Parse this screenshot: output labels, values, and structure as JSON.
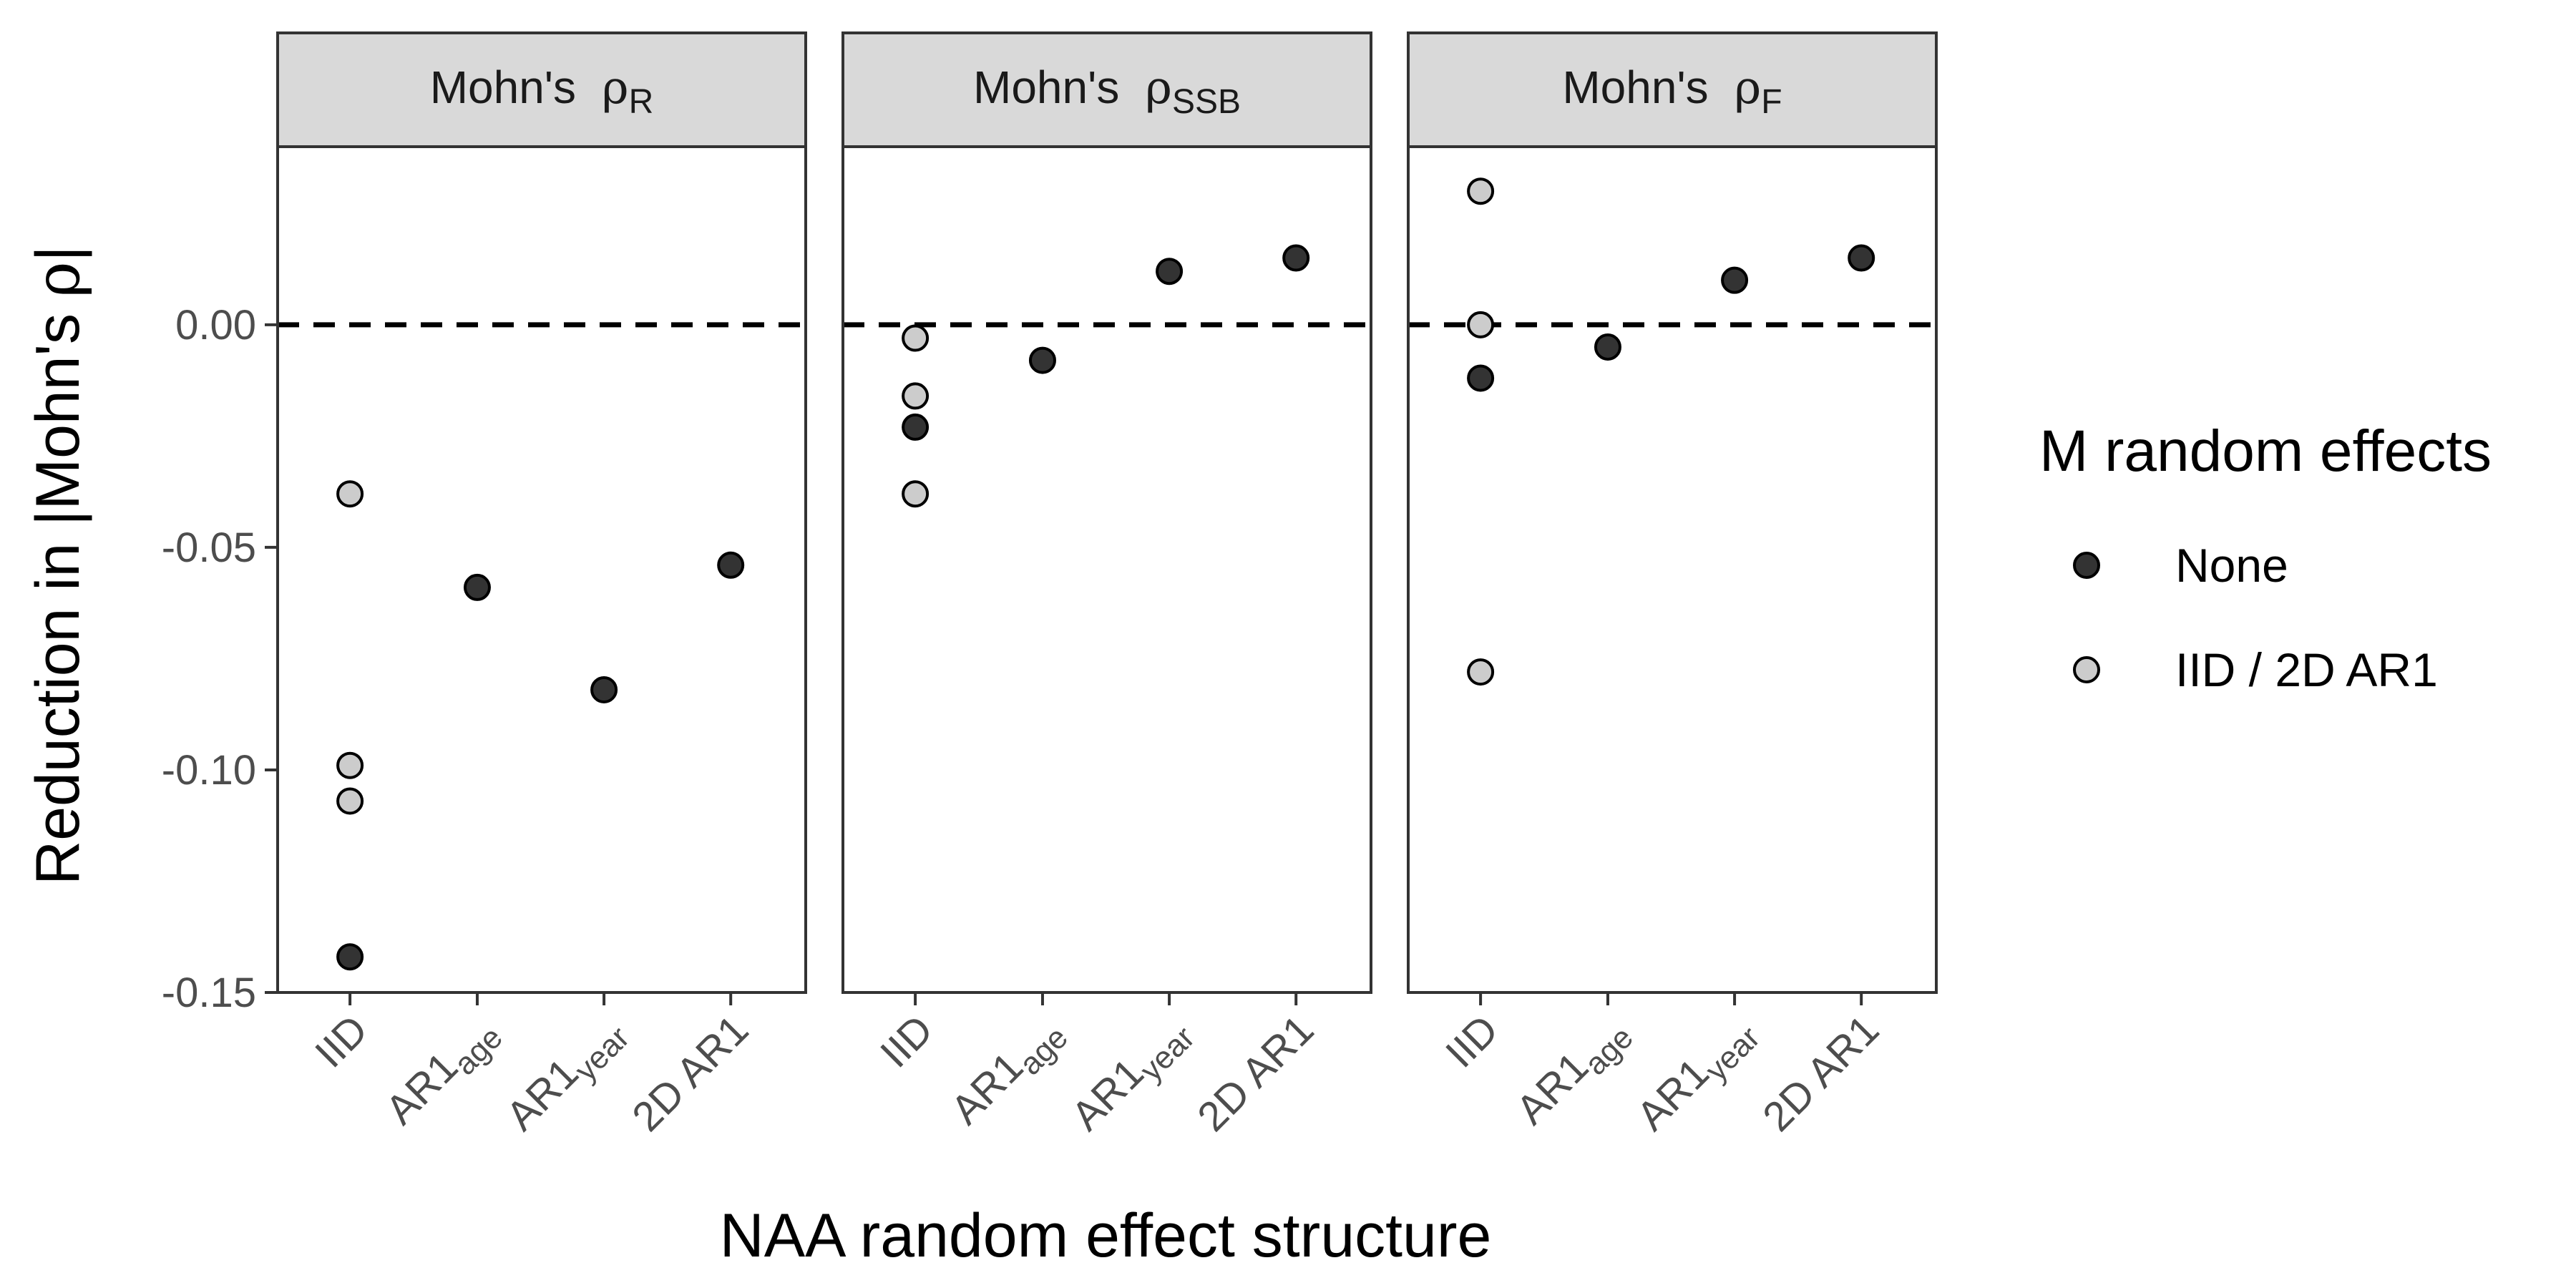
{
  "chart_data": {
    "type": "scatter",
    "facets": [
      {
        "base": "Mohn's",
        "greek": "ρ",
        "sub": "R"
      },
      {
        "base": "Mohn's",
        "greek": "ρ",
        "sub": "SSB"
      },
      {
        "base": "Mohn's",
        "greek": "ρ",
        "sub": "F"
      }
    ],
    "categories": [
      {
        "main": "IID",
        "sub": ""
      },
      {
        "main": "AR1",
        "sub": "age"
      },
      {
        "main": "AR1",
        "sub": "year"
      },
      {
        "main": "2D  AR1",
        "sub": ""
      }
    ],
    "ylim": [
      -0.15,
      0.04
    ],
    "yticks": [
      0.0,
      -0.05,
      -0.1,
      -0.15
    ],
    "ytick_labels": [
      "0.00",
      "-0.05",
      "-0.10",
      "-0.15"
    ],
    "reference_line_y": 0.0,
    "ylabel": {
      "prefix": "Reduction  in  |Mohn's",
      "greek": "ρ",
      "suffix": "|"
    },
    "xlabel": "NAA random effect structure",
    "legend": {
      "title": "M random effects",
      "position": "right",
      "entries": [
        {
          "label": "None",
          "group": "none",
          "color": "#333333"
        },
        {
          "label": "IID / 2D AR1",
          "group": "re",
          "color": "#cccccc"
        }
      ]
    },
    "points": [
      {
        "facet": 0,
        "category": 0,
        "y": -0.038,
        "group": "re"
      },
      {
        "facet": 0,
        "category": 0,
        "y": -0.099,
        "group": "re"
      },
      {
        "facet": 0,
        "category": 0,
        "y": -0.107,
        "group": "re"
      },
      {
        "facet": 0,
        "category": 0,
        "y": -0.142,
        "group": "none"
      },
      {
        "facet": 0,
        "category": 1,
        "y": -0.059,
        "group": "none"
      },
      {
        "facet": 0,
        "category": 2,
        "y": -0.082,
        "group": "none"
      },
      {
        "facet": 0,
        "category": 3,
        "y": -0.054,
        "group": "none"
      },
      {
        "facet": 1,
        "category": 0,
        "y": -0.003,
        "group": "re"
      },
      {
        "facet": 1,
        "category": 0,
        "y": -0.016,
        "group": "re"
      },
      {
        "facet": 1,
        "category": 0,
        "y": -0.023,
        "group": "none"
      },
      {
        "facet": 1,
        "category": 0,
        "y": -0.038,
        "group": "re"
      },
      {
        "facet": 1,
        "category": 1,
        "y": -0.008,
        "group": "none"
      },
      {
        "facet": 1,
        "category": 2,
        "y": 0.012,
        "group": "none"
      },
      {
        "facet": 1,
        "category": 3,
        "y": 0.015,
        "group": "none"
      },
      {
        "facet": 2,
        "category": 0,
        "y": 0.03,
        "group": "re"
      },
      {
        "facet": 2,
        "category": 0,
        "y": 0.0,
        "group": "re"
      },
      {
        "facet": 2,
        "category": 0,
        "y": -0.012,
        "group": "none"
      },
      {
        "facet": 2,
        "category": 0,
        "y": -0.078,
        "group": "re"
      },
      {
        "facet": 2,
        "category": 1,
        "y": -0.005,
        "group": "none"
      },
      {
        "facet": 2,
        "category": 2,
        "y": 0.01,
        "group": "none"
      },
      {
        "facet": 2,
        "category": 3,
        "y": 0.015,
        "group": "none"
      }
    ]
  }
}
